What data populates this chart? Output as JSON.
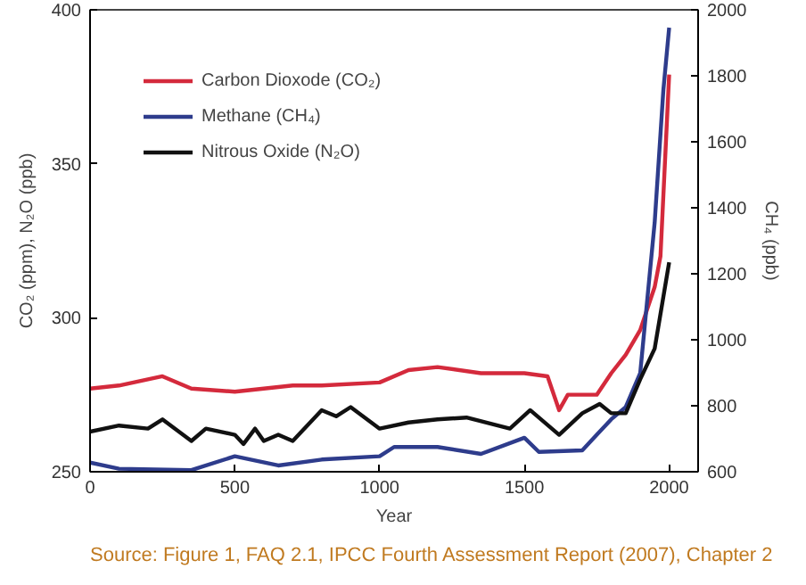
{
  "chart_data": {
    "type": "line",
    "xlabel": "Year",
    "ylabel": "CO₂ (ppm), N₂O (ppb)",
    "y2label": "CH₄ (ppb)",
    "xlim": [
      0,
      2100
    ],
    "xticks": [
      0,
      500,
      1000,
      1500,
      2000
    ],
    "ylim": [
      250,
      400
    ],
    "yticks": [
      250,
      300,
      350,
      400
    ],
    "y2lim": [
      600,
      2000
    ],
    "y2ticks": [
      600,
      800,
      1000,
      1200,
      1400,
      1600,
      1800,
      2000
    ],
    "grid": false,
    "legend": "top left",
    "line_style": "solid",
    "marker": "none",
    "annotations": [
      "Source: Figure 1, FAQ 2.1, IPCC Fourth Assessment Report (2007), Chapter 2"
    ],
    "series": [
      {
        "name": "Carbon Dioxode (CO₂)",
        "color": "#d42a3c",
        "x": [
          0,
          100,
          250,
          350,
          500,
          600,
          700,
          800,
          1000,
          1100,
          1200,
          1350,
          1500,
          1580,
          1620,
          1650,
          1750,
          1800,
          1850,
          1900,
          1950,
          1970,
          2000
        ],
        "values": [
          277,
          278,
          281,
          277,
          276,
          277,
          278,
          278,
          279,
          283,
          284,
          282,
          282,
          281,
          270,
          275,
          275,
          282,
          288,
          296,
          310,
          320,
          379
        ]
      },
      {
        "name": "Methane (CH₄)",
        "color": "#2e3c8c",
        "axis": "y2",
        "x": [
          0,
          100,
          350,
          500,
          650,
          800,
          1000,
          1050,
          1200,
          1350,
          1500,
          1550,
          1700,
          1750,
          1800,
          1850,
          1900,
          1950,
          1980,
          2000
        ],
        "values": [
          628,
          609,
          605,
          647,
          619,
          637,
          647,
          675,
          675,
          654,
          703,
          660,
          665,
          712,
          759,
          796,
          899,
          1356,
          1757,
          1946
        ]
      },
      {
        "name": "Nitrous Oxide (N₂O)",
        "color": "#111111",
        "x": [
          0,
          100,
          200,
          250,
          350,
          400,
          500,
          530,
          570,
          600,
          650,
          700,
          800,
          850,
          900,
          1000,
          1100,
          1200,
          1300,
          1450,
          1520,
          1620,
          1700,
          1760,
          1800,
          1850,
          1900,
          1950,
          2000
        ],
        "values": [
          263,
          265,
          264,
          267,
          260,
          264,
          262,
          259,
          264,
          260,
          262,
          260,
          270,
          268,
          271,
          264,
          266,
          267,
          267.6,
          264,
          270,
          262,
          269,
          272,
          269,
          269,
          280,
          290,
          318
        ]
      }
    ]
  }
}
